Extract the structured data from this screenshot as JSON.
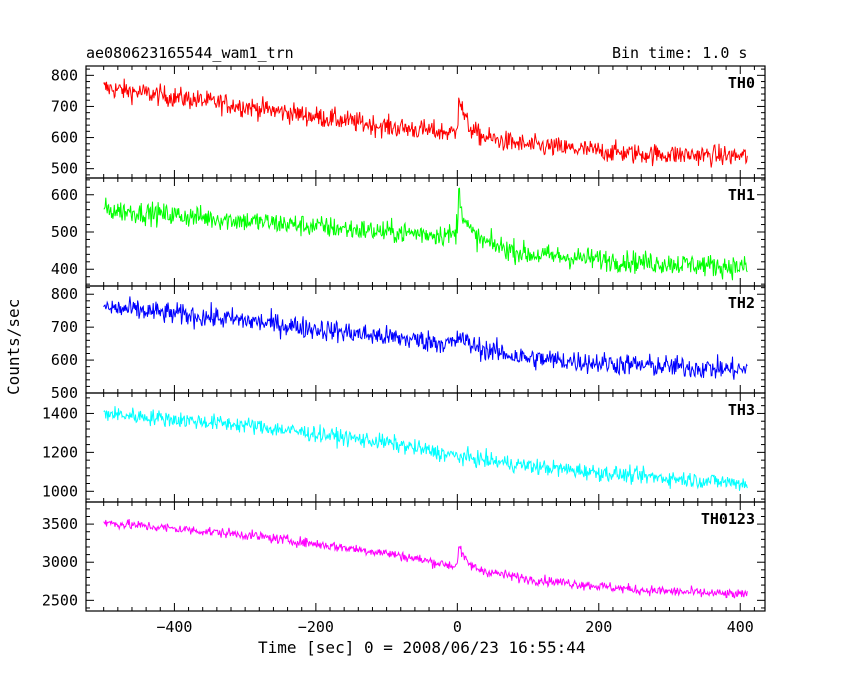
{
  "header": {
    "title": "ae080623165544_wam1_trn",
    "bin_time": "Bin time: 1.0 s"
  },
  "axes": {
    "xlabel": "Time [sec] 0 = 2008/06/23 16:55:44",
    "ylabel": "Counts/sec"
  },
  "chart_data": {
    "type": "line",
    "title": "ae080623165544_wam1_trn",
    "xlabel": "Time [sec] 0 = 2008/06/23 16:55:44",
    "ylabel": "Counts/sec",
    "xlim": [
      -525,
      435
    ],
    "x_ticks": [
      -400,
      -200,
      0,
      200,
      400
    ],
    "x_range": [
      -500,
      410
    ],
    "bin_time_s": 1.0,
    "panels": [
      {
        "name": "TH0",
        "color": "#ff0000",
        "ylim": [
          470,
          830
        ],
        "y_ticks": [
          500,
          600,
          700,
          800
        ],
        "trend": [
          [
            -500,
            760
          ],
          [
            -300,
            700
          ],
          [
            -100,
            635
          ],
          [
            -5,
            615
          ],
          [
            100,
            575
          ],
          [
            250,
            548
          ],
          [
            410,
            540
          ]
        ],
        "noise": 28,
        "burst": {
          "t": 2,
          "peak": 130,
          "decay": 10
        }
      },
      {
        "name": "TH1",
        "color": "#00ff00",
        "ylim": [
          355,
          645
        ],
        "y_ticks": [
          400,
          500,
          600
        ],
        "trend": [
          [
            -500,
            560
          ],
          [
            -300,
            530
          ],
          [
            -100,
            500
          ],
          [
            -5,
            492
          ],
          [
            100,
            440
          ],
          [
            250,
            420
          ],
          [
            410,
            405
          ]
        ],
        "noise": 25,
        "burst": {
          "t": 2,
          "peak": 120,
          "decay": 10
        }
      },
      {
        "name": "TH2",
        "color": "#0000ff",
        "ylim": [
          500,
          825
        ],
        "y_ticks": [
          500,
          600,
          700,
          800
        ],
        "trend": [
          [
            -500,
            760
          ],
          [
            -300,
            720
          ],
          [
            -100,
            670
          ],
          [
            -5,
            650
          ],
          [
            100,
            605
          ],
          [
            250,
            585
          ],
          [
            410,
            570
          ]
        ],
        "noise": 28,
        "burst": {
          "t": 2,
          "peak": 30,
          "decay": 12
        }
      },
      {
        "name": "TH3",
        "color": "#00ffff",
        "ylim": [
          945,
          1505
        ],
        "y_ticks": [
          1000,
          1200,
          1400
        ],
        "trend": [
          [
            -500,
            1400
          ],
          [
            -300,
            1340
          ],
          [
            -100,
            1250
          ],
          [
            0,
            1180
          ],
          [
            100,
            1130
          ],
          [
            250,
            1080
          ],
          [
            410,
            1040
          ]
        ],
        "noise": 35,
        "burst": null
      },
      {
        "name": "TH0123",
        "color": "#ff00ff",
        "ylim": [
          2360,
          3790
        ],
        "y_ticks": [
          2500,
          3000,
          3500
        ],
        "trend": [
          [
            -500,
            3520
          ],
          [
            -300,
            3360
          ],
          [
            -100,
            3120
          ],
          [
            -5,
            2950
          ],
          [
            100,
            2780
          ],
          [
            250,
            2640
          ],
          [
            410,
            2570
          ]
        ],
        "noise": 55,
        "burst": {
          "t": 2,
          "peak": 280,
          "decay": 10
        }
      }
    ]
  }
}
